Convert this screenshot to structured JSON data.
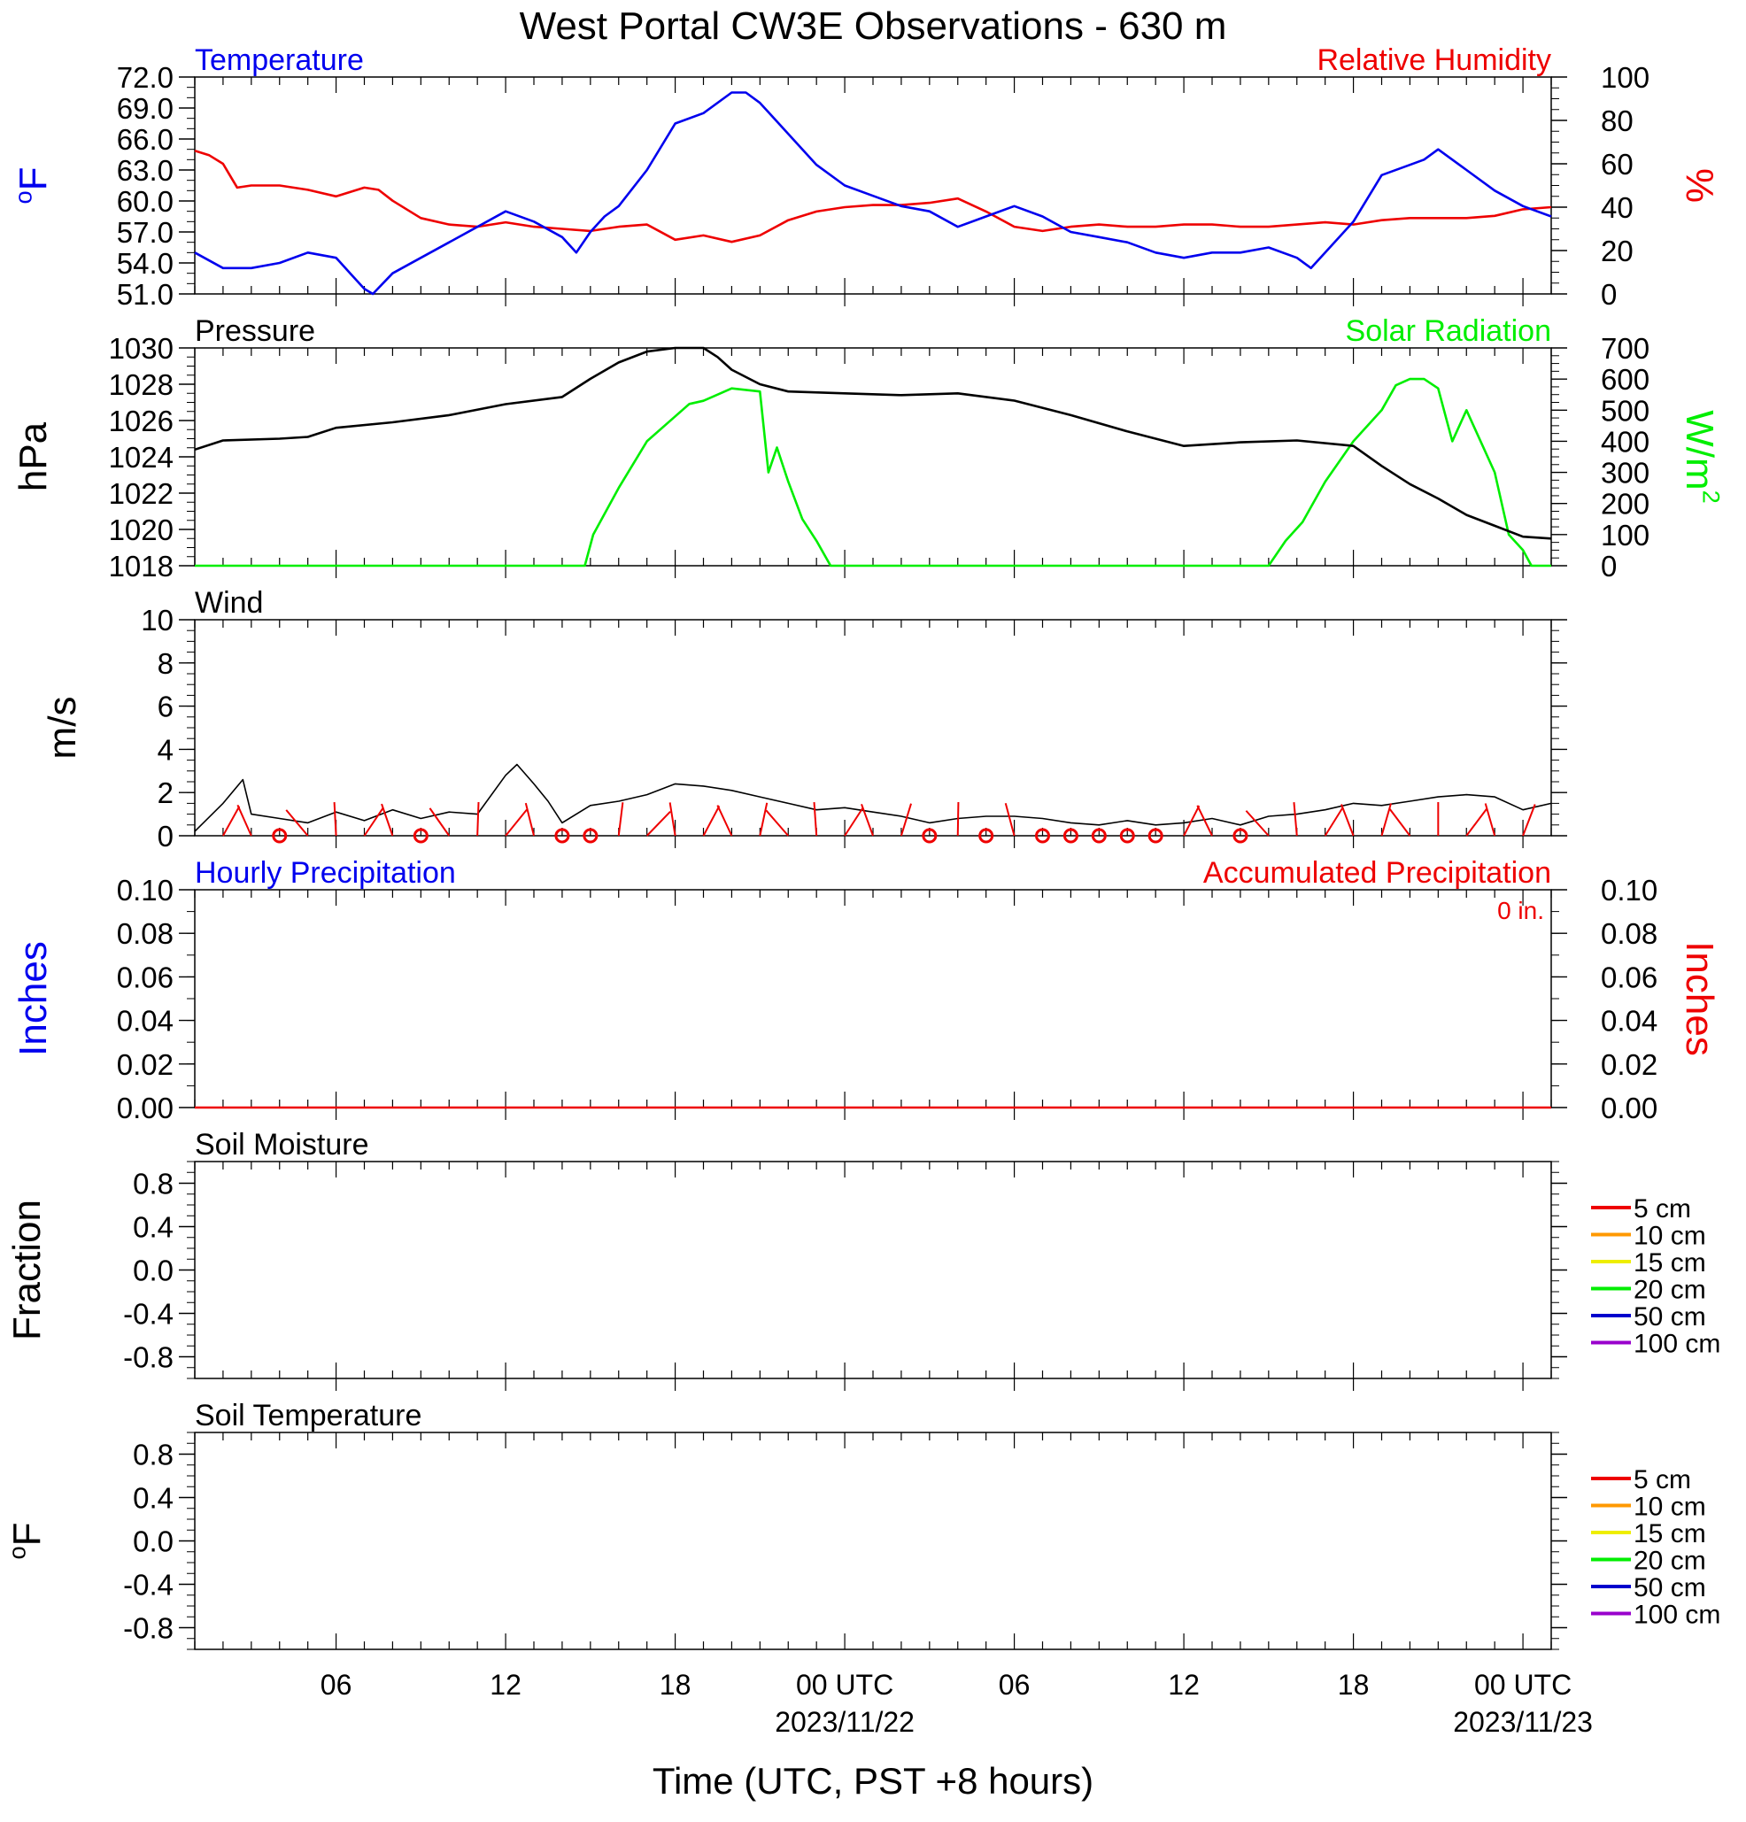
{
  "title": "West Portal CW3E Observations - 630 m",
  "xlabel": "Time (UTC, PST +8 hours)",
  "x_ticks": [
    {
      "hour": 6,
      "label": "06",
      "date": ""
    },
    {
      "hour": 12,
      "label": "12",
      "date": ""
    },
    {
      "hour": 18,
      "label": "18",
      "date": ""
    },
    {
      "hour": 24,
      "label": "00 UTC",
      "date": "2023/11/22"
    },
    {
      "hour": 30,
      "label": "06",
      "date": ""
    },
    {
      "hour": 36,
      "label": "12",
      "date": ""
    },
    {
      "hour": 42,
      "label": "18",
      "date": ""
    },
    {
      "hour": 48,
      "label": "00 UTC",
      "date": "2023/11/23"
    }
  ],
  "colors": {
    "temperature": "#0000ee",
    "humidity": "#ee0000",
    "pressure": "#000000",
    "solar": "#00ee00",
    "wind": "#000000",
    "barb": "#ee0000",
    "precip_left": "#0000ee",
    "precip_right": "#ee0000"
  },
  "chart_data": [
    {
      "type": "line",
      "panel": "temperature-humidity",
      "left_title": "Temperature",
      "right_title": "Relative Humidity",
      "left_axis_label": "oF",
      "right_axis_label": "%",
      "x_range_hours": [
        1,
        49
      ],
      "left_ylim": [
        51,
        72
      ],
      "left_ticks": [
        "72.0",
        "69.0",
        "66.0",
        "63.0",
        "60.0",
        "57.0",
        "54.0",
        "51.0"
      ],
      "right_ylim": [
        0,
        100
      ],
      "right_ticks": [
        "100",
        "80",
        "60",
        "40",
        "20",
        "0"
      ],
      "series": [
        {
          "axis": "left",
          "x": [
            1,
            2,
            3,
            4,
            5,
            6,
            6.5,
            7,
            7.3,
            8,
            9,
            10,
            11,
            12,
            13,
            14,
            14.5,
            15,
            15.5,
            16,
            17,
            18,
            19,
            20,
            20.5,
            21,
            22,
            23,
            24,
            25,
            26,
            27,
            28,
            29,
            30,
            31,
            32,
            33,
            34,
            35,
            36,
            37,
            38,
            39,
            40,
            40.5,
            41,
            42,
            43,
            44,
            44.5,
            45,
            46,
            47,
            48,
            49
          ],
          "y": [
            55.0,
            53.5,
            53.5,
            54.0,
            55.0,
            54.5,
            53.0,
            51.5,
            51.0,
            53.0,
            54.5,
            56.0,
            57.5,
            59.0,
            58.0,
            56.5,
            55.0,
            57.0,
            58.5,
            59.5,
            63.0,
            67.5,
            68.5,
            70.5,
            70.5,
            69.5,
            66.5,
            63.5,
            61.5,
            60.5,
            59.5,
            59.0,
            57.5,
            58.5,
            59.5,
            58.5,
            57.0,
            56.5,
            56.0,
            55.0,
            54.5,
            55.0,
            55.0,
            55.5,
            54.5,
            53.5,
            55.0,
            58.0,
            62.5,
            63.5,
            64.0,
            65.0,
            63.0,
            61.0,
            59.5,
            58.5
          ]
        },
        {
          "axis": "right",
          "x": [
            1,
            1.5,
            2,
            2.5,
            3,
            4,
            5,
            6,
            7,
            7.5,
            8,
            9,
            10,
            11,
            12,
            13,
            14,
            15,
            16,
            17,
            18,
            19,
            20,
            21,
            22,
            23,
            24,
            25,
            26,
            27,
            28,
            29,
            30,
            31,
            32,
            33,
            34,
            35,
            36,
            37,
            38,
            39,
            40,
            41,
            42,
            43,
            44,
            45,
            46,
            47,
            48,
            49
          ],
          "y": [
            66,
            64,
            60,
            49,
            50,
            50,
            48,
            45,
            49,
            48,
            43,
            35,
            32,
            31,
            33,
            31,
            30,
            29,
            31,
            32,
            25,
            27,
            24,
            27,
            34,
            38,
            40,
            41,
            41,
            42,
            44,
            38,
            31,
            29,
            31,
            32,
            31,
            31,
            32,
            32,
            31,
            31,
            32,
            33,
            32,
            34,
            35,
            35,
            35,
            36,
            39,
            40
          ]
        }
      ]
    },
    {
      "type": "line",
      "panel": "pressure-solar",
      "left_title": "Pressure",
      "right_title": "Solar Radiation",
      "left_axis_label": "hPa",
      "right_axis_label": "W/m2",
      "x_range_hours": [
        1,
        49
      ],
      "left_ylim": [
        1018,
        1030
      ],
      "left_ticks": [
        "1030",
        "1028",
        "1026",
        "1024",
        "1022",
        "1020",
        "1018"
      ],
      "right_ylim": [
        0,
        700
      ],
      "right_ticks": [
        "700",
        "600",
        "500",
        "400",
        "300",
        "200",
        "100",
        "0"
      ],
      "series": [
        {
          "axis": "left",
          "x": [
            1,
            2,
            4,
            5,
            6,
            8,
            10,
            12,
            14,
            15,
            16,
            17,
            18,
            19,
            19.5,
            20,
            21,
            22,
            24,
            26,
            28,
            30,
            32,
            34,
            36,
            38,
            40,
            42,
            43,
            44,
            45,
            46,
            47,
            48,
            49
          ],
          "y": [
            1024.4,
            1024.9,
            1025.0,
            1025.1,
            1025.6,
            1025.9,
            1026.3,
            1026.9,
            1027.3,
            1028.3,
            1029.2,
            1029.8,
            1030.0,
            1030.0,
            1029.5,
            1028.8,
            1028.0,
            1027.6,
            1027.5,
            1027.4,
            1027.5,
            1027.1,
            1026.3,
            1025.4,
            1024.6,
            1024.8,
            1024.9,
            1024.6,
            1023.5,
            1022.5,
            1021.7,
            1020.8,
            1020.2,
            1019.6,
            1019.5
          ]
        },
        {
          "axis": "right",
          "x": [
            1,
            10,
            14.8,
            15.1,
            16,
            17,
            18,
            18.5,
            19,
            19.5,
            20,
            21,
            21.3,
            21.6,
            22,
            22.5,
            23,
            23.5,
            24.5,
            30,
            39,
            39.6,
            40.2,
            41,
            42,
            43,
            43.5,
            44,
            44.5,
            45,
            45.5,
            46,
            47,
            47.5,
            48,
            48.3,
            49
          ],
          "y": [
            0,
            0,
            0,
            100,
            250,
            400,
            480,
            520,
            530,
            550,
            570,
            560,
            300,
            380,
            270,
            150,
            80,
            0,
            0,
            0,
            0,
            80,
            140,
            270,
            400,
            500,
            580,
            600,
            600,
            570,
            400,
            500,
            300,
            100,
            50,
            0,
            0
          ]
        }
      ]
    },
    {
      "type": "line",
      "panel": "wind",
      "left_title": "Wind",
      "left_axis_label": "m/s",
      "x_range_hours": [
        1,
        49
      ],
      "left_ylim": [
        0,
        10
      ],
      "left_ticks": [
        "10",
        "8",
        "6",
        "4",
        "2",
        "0"
      ],
      "series": [
        {
          "axis": "left",
          "x": [
            1,
            2,
            2.7,
            3,
            4,
            5,
            6,
            7,
            8,
            9,
            10,
            11,
            12,
            12.4,
            13,
            13.5,
            14,
            15,
            16,
            17,
            18,
            19,
            20,
            21,
            22,
            23,
            24,
            25,
            26,
            27,
            28,
            29,
            30,
            31,
            32,
            33,
            34,
            35,
            36,
            37,
            38,
            39,
            40,
            41,
            42,
            43,
            44,
            45,
            46,
            47,
            48,
            49
          ],
          "y": [
            0.2,
            1.5,
            2.6,
            1.0,
            0.8,
            0.6,
            1.1,
            0.7,
            1.2,
            0.8,
            1.1,
            1.0,
            2.8,
            3.3,
            2.4,
            1.6,
            0.6,
            1.4,
            1.6,
            1.9,
            2.4,
            2.3,
            2.1,
            1.8,
            1.5,
            1.2,
            1.3,
            1.1,
            0.9,
            0.6,
            0.8,
            0.9,
            0.9,
            0.8,
            0.6,
            0.5,
            0.7,
            0.5,
            0.6,
            0.8,
            0.5,
            0.9,
            1.0,
            1.2,
            1.5,
            1.4,
            1.6,
            1.8,
            1.9,
            1.8,
            1.2,
            1.5
          ]
        }
      ],
      "calm_hours": [
        4,
        9,
        14,
        15,
        27,
        29,
        31,
        32,
        33,
        34,
        35,
        38
      ]
    },
    {
      "type": "line",
      "panel": "precipitation",
      "left_title": "Hourly Precipitation",
      "right_title": "Accumulated Precipitation",
      "accumulated_label": "0 in.",
      "left_axis_label": "Inches",
      "right_axis_label": "Inches",
      "x_range_hours": [
        1,
        49
      ],
      "left_ylim": [
        0,
        0.1
      ],
      "left_ticks": [
        "0.10",
        "0.08",
        "0.06",
        "0.04",
        "0.02",
        "0.00"
      ],
      "right_ylim": [
        0,
        0.1
      ],
      "right_ticks": [
        "0.10",
        "0.08",
        "0.06",
        "0.04",
        "0.02",
        "0.00"
      ],
      "series": [
        {
          "axis": "left",
          "x": [
            1,
            49
          ],
          "y": [
            0,
            0
          ]
        },
        {
          "axis": "right",
          "x": [
            1,
            49
          ],
          "y": [
            0,
            0
          ]
        }
      ]
    },
    {
      "type": "line",
      "panel": "soil-moisture",
      "left_title": "Soil Moisture",
      "left_axis_label": "Fraction",
      "left_ylim": [
        -1,
        1
      ],
      "left_ticks": [
        "0.8",
        "0.4",
        "0.0",
        "-0.4",
        "-0.8"
      ],
      "legend": [
        "5 cm",
        "10 cm",
        "15 cm",
        "20 cm",
        "50 cm",
        "100 cm"
      ],
      "legend_colors": [
        "#ee0000",
        "#ff9900",
        "#eeee00",
        "#00ee00",
        "#0000cc",
        "#9900cc"
      ],
      "series": []
    },
    {
      "type": "line",
      "panel": "soil-temperature",
      "left_title": "Soil Temperature",
      "left_axis_label": "oF",
      "left_ylim": [
        -1,
        1
      ],
      "left_ticks": [
        "0.8",
        "0.4",
        "0.0",
        "-0.4",
        "-0.8"
      ],
      "legend": [
        "5 cm",
        "10 cm",
        "15 cm",
        "20 cm",
        "50 cm",
        "100 cm"
      ],
      "legend_colors": [
        "#ee0000",
        "#ff9900",
        "#eeee00",
        "#00ee00",
        "#0000cc",
        "#9900cc"
      ],
      "series": []
    }
  ]
}
